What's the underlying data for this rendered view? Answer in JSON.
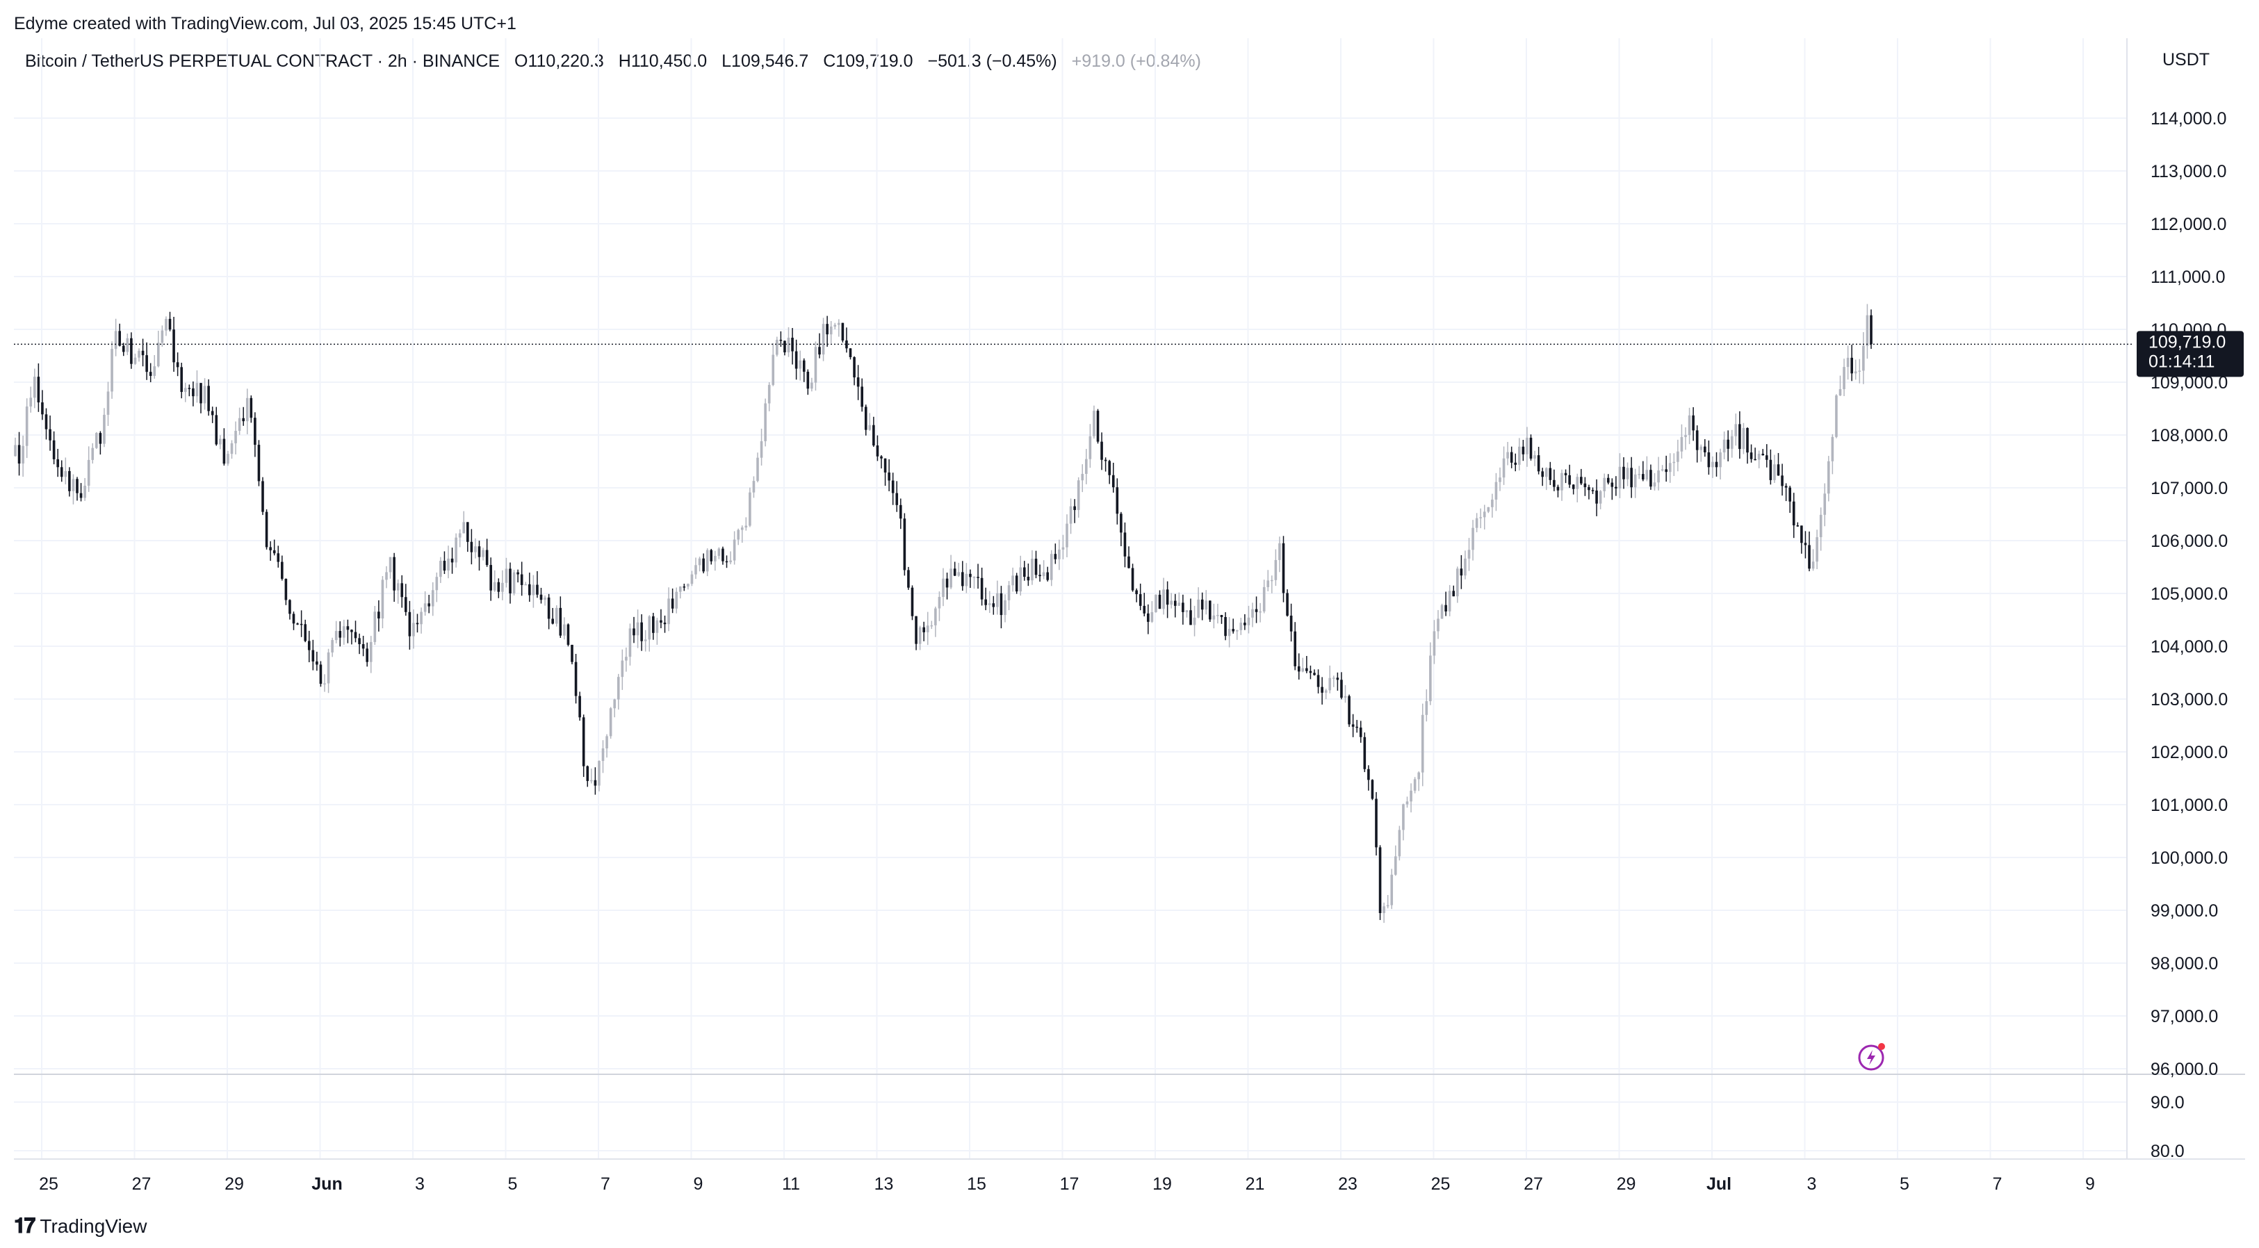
{
  "header": {
    "credit": "Edyme created with TradingView.com, Jul 03, 2025 15:45 UTC+1"
  },
  "legend": {
    "symbol": "Bitcoin / TetherUS PERPETUAL CONTRACT · 2h · BINANCE",
    "open": "O110,220.3",
    "high": "H110,450.0",
    "low": "L109,546.7",
    "close": "C109,719.0",
    "change": "−501.3 (−0.45%)",
    "after_hours": "+919.0 (+0.84%)"
  },
  "currency": "USDT",
  "price_badge": {
    "price": "109,719.0",
    "countdown": "01:14:11"
  },
  "footer": {
    "brand": "TradingView"
  },
  "chart_data": {
    "type": "candlestick",
    "interval": "2h",
    "y_range": [
      95700,
      114800
    ],
    "last_price": 109719.0,
    "grid": true,
    "price_ticks": [
      "114,000.0",
      "113,000.0",
      "112,000.0",
      "111,000.0",
      "110,000.0",
      "109,000.0",
      "108,000.0",
      "107,000.0",
      "106,000.0",
      "105,000.0",
      "104,000.0",
      "103,000.0",
      "102,000.0",
      "101,000.0",
      "100,000.0",
      "99,000.0",
      "98,000.0",
      "97,000.0",
      "96,000.0"
    ],
    "volume_ticks": [
      "90.0",
      "80.0"
    ],
    "x_labels": [
      {
        "text": "25",
        "bold": false
      },
      {
        "text": "27",
        "bold": false
      },
      {
        "text": "29",
        "bold": false
      },
      {
        "text": "Jun",
        "bold": true
      },
      {
        "text": "3",
        "bold": false
      },
      {
        "text": "5",
        "bold": false
      },
      {
        "text": "7",
        "bold": false
      },
      {
        "text": "9",
        "bold": false
      },
      {
        "text": "11",
        "bold": false
      },
      {
        "text": "13",
        "bold": false
      },
      {
        "text": "15",
        "bold": false
      },
      {
        "text": "17",
        "bold": false
      },
      {
        "text": "19",
        "bold": false
      },
      {
        "text": "21",
        "bold": false
      },
      {
        "text": "23",
        "bold": false
      },
      {
        "text": "25",
        "bold": false
      },
      {
        "text": "27",
        "bold": false
      },
      {
        "text": "29",
        "bold": false
      },
      {
        "text": "Jul",
        "bold": true
      },
      {
        "text": "3",
        "bold": false
      },
      {
        "text": "5",
        "bold": false
      },
      {
        "text": "7",
        "bold": false
      },
      {
        "text": "9",
        "bold": false
      }
    ],
    "price_path": [
      {
        "date": "May 24 12:00",
        "price": 107600
      },
      {
        "date": "May 24 20:00",
        "price": 109100
      },
      {
        "date": "May 25 08:00",
        "price": 107300
      },
      {
        "date": "May 25 20:00",
        "price": 106900
      },
      {
        "date": "May 26 08:00",
        "price": 108200
      },
      {
        "date": "May 26 14:00",
        "price": 109900
      },
      {
        "date": "May 27 00:00",
        "price": 109500
      },
      {
        "date": "May 27 08:00",
        "price": 109100
      },
      {
        "date": "May 27 16:00",
        "price": 110100
      },
      {
        "date": "May 28 00:00",
        "price": 109000
      },
      {
        "date": "May 28 12:00",
        "price": 108800
      },
      {
        "date": "May 29 00:00",
        "price": 107400
      },
      {
        "date": "May 29 08:00",
        "price": 108400
      },
      {
        "date": "May 29 12:00",
        "price": 108600
      },
      {
        "date": "May 29 20:00",
        "price": 106100
      },
      {
        "date": "May 30 08:00",
        "price": 104800
      },
      {
        "date": "May 30 16:00",
        "price": 104100
      },
      {
        "date": "May 31 00:00",
        "price": 103300
      },
      {
        "date": "May 31 12:00",
        "price": 104400
      },
      {
        "date": "Jun 01 00:00",
        "price": 103900
      },
      {
        "date": "Jun 01 12:00",
        "price": 105500
      },
      {
        "date": "Jun 02 00:00",
        "price": 104200
      },
      {
        "date": "Jun 02 16:00",
        "price": 105600
      },
      {
        "date": "Jun 03 04:00",
        "price": 106200
      },
      {
        "date": "Jun 03 16:00",
        "price": 105300
      },
      {
        "date": "Jun 04 04:00",
        "price": 105200
      },
      {
        "date": "Jun 04 16:00",
        "price": 104900
      },
      {
        "date": "Jun 05 08:00",
        "price": 104300
      },
      {
        "date": "Jun 05 16:00",
        "price": 102000
      },
      {
        "date": "Jun 05 20:00",
        "price": 101200
      },
      {
        "date": "Jun 06 04:00",
        "price": 102500
      },
      {
        "date": "Jun 06 16:00",
        "price": 104100
      },
      {
        "date": "Jun 07 08:00",
        "price": 104500
      },
      {
        "date": "Jun 07 20:00",
        "price": 105300
      },
      {
        "date": "Jun 08 08:00",
        "price": 105700
      },
      {
        "date": "Jun 08 20:00",
        "price": 105600
      },
      {
        "date": "Jun 09 04:00",
        "price": 106300
      },
      {
        "date": "Jun 09 12:00",
        "price": 107800
      },
      {
        "date": "Jun 09 20:00",
        "price": 110000
      },
      {
        "date": "Jun 10 04:00",
        "price": 109600
      },
      {
        "date": "Jun 10 12:00",
        "price": 108900
      },
      {
        "date": "Jun 10 20:00",
        "price": 110000
      },
      {
        "date": "Jun 11 08:00",
        "price": 109900
      },
      {
        "date": "Jun 11 16:00",
        "price": 108400
      },
      {
        "date": "Jun 12 00:00",
        "price": 107800
      },
      {
        "date": "Jun 12 12:00",
        "price": 106300
      },
      {
        "date": "Jun 12 20:00",
        "price": 104200
      },
      {
        "date": "Jun 13 04:00",
        "price": 104600
      },
      {
        "date": "Jun 13 16:00",
        "price": 105500
      },
      {
        "date": "Jun 14 04:00",
        "price": 105100
      },
      {
        "date": "Jun 14 16:00",
        "price": 104800
      },
      {
        "date": "Jun 15 04:00",
        "price": 105500
      },
      {
        "date": "Jun 15 16:00",
        "price": 105300
      },
      {
        "date": "Jun 16 04:00",
        "price": 106400
      },
      {
        "date": "Jun 16 16:00",
        "price": 108300
      },
      {
        "date": "Jun 17 00:00",
        "price": 107300
      },
      {
        "date": "Jun 17 08:00",
        "price": 106000
      },
      {
        "date": "Jun 17 16:00",
        "price": 104600
      },
      {
        "date": "Jun 18 04:00",
        "price": 104900
      },
      {
        "date": "Jun 18 16:00",
        "price": 104600
      },
      {
        "date": "Jun 19 04:00",
        "price": 104700
      },
      {
        "date": "Jun 19 16:00",
        "price": 104300
      },
      {
        "date": "Jun 20 04:00",
        "price": 104500
      },
      {
        "date": "Jun 20 16:00",
        "price": 105900
      },
      {
        "date": "Jun 21 00:00",
        "price": 103700
      },
      {
        "date": "Jun 21 12:00",
        "price": 103400
      },
      {
        "date": "Jun 22 00:00",
        "price": 103100
      },
      {
        "date": "Jun 22 08:00",
        "price": 102300
      },
      {
        "date": "Jun 22 16:00",
        "price": 101500
      },
      {
        "date": "Jun 22 20:00",
        "price": 99000
      },
      {
        "date": "Jun 23 00:00",
        "price": 98900
      },
      {
        "date": "Jun 23 08:00",
        "price": 100800
      },
      {
        "date": "Jun 23 16:00",
        "price": 101700
      },
      {
        "date": "Jun 24 00:00",
        "price": 104400
      },
      {
        "date": "Jun 24 12:00",
        "price": 105200
      },
      {
        "date": "Jun 25 00:00",
        "price": 106400
      },
      {
        "date": "Jun 25 12:00",
        "price": 107500
      },
      {
        "date": "Jun 26 00:00",
        "price": 107800
      },
      {
        "date": "Jun 26 12:00",
        "price": 107100
      },
      {
        "date": "Jun 27 00:00",
        "price": 107000
      },
      {
        "date": "Jun 27 12:00",
        "price": 106800
      },
      {
        "date": "Jun 28 00:00",
        "price": 107300
      },
      {
        "date": "Jun 28 12:00",
        "price": 107200
      },
      {
        "date": "Jun 29 00:00",
        "price": 107100
      },
      {
        "date": "Jun 29 12:00",
        "price": 108200
      },
      {
        "date": "Jun 30 00:00",
        "price": 107500
      },
      {
        "date": "Jun 30 12:00",
        "price": 108000
      },
      {
        "date": "Jul 01 00:00",
        "price": 107700
      },
      {
        "date": "Jul 01 12:00",
        "price": 107000
      },
      {
        "date": "Jul 01 20:00",
        "price": 106300
      },
      {
        "date": "Jul 02 04:00",
        "price": 105400
      },
      {
        "date": "Jul 02 12:00",
        "price": 107400
      },
      {
        "date": "Jul 02 20:00",
        "price": 109500
      },
      {
        "date": "Jul 03 04:00",
        "price": 109000
      },
      {
        "date": "Jul 03 08:00",
        "price": 110200
      },
      {
        "date": "Jul 03 12:00",
        "price": 109719
      }
    ]
  }
}
